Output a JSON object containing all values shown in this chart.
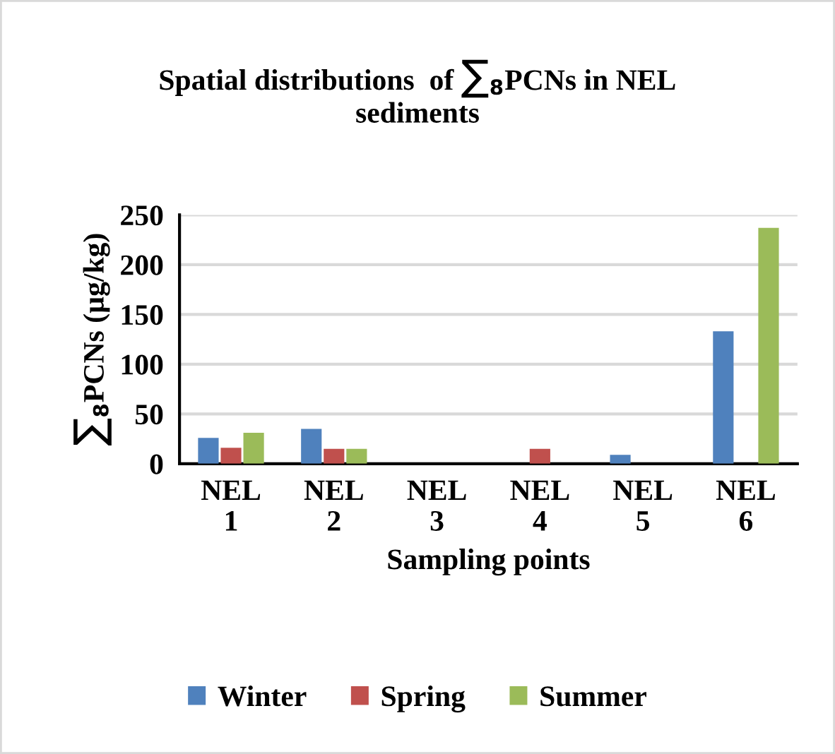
{
  "chart_data": {
    "type": "bar",
    "title": "Spatial distributions  of ∑$_{8}$PCNs in NEL sediments",
    "xlabel": "Sampling points",
    "ylabel": "∑$_{8}$PCNs (µg/kg)",
    "categories": [
      "NEL\n1",
      "NEL\n2",
      "NEL\n3",
      "NEL\n4",
      "NEL\n5",
      "NEL\n6"
    ],
    "series": [
      {
        "name": "Winter",
        "color": "#4f81bd",
        "values": [
          26,
          35,
          0,
          0,
          9,
          133
        ]
      },
      {
        "name": "Spring",
        "color": "#c0504d",
        "values": [
          16,
          15,
          0,
          15,
          0,
          0
        ]
      },
      {
        "name": "Summer",
        "color": "#9bbb59",
        "values": [
          31,
          15,
          0,
          0,
          0,
          237
        ]
      }
    ],
    "ylim": [
      0,
      250
    ],
    "yticks": [
      0,
      50,
      100,
      150,
      200,
      250
    ],
    "grid": "y",
    "legend": "bottom"
  }
}
